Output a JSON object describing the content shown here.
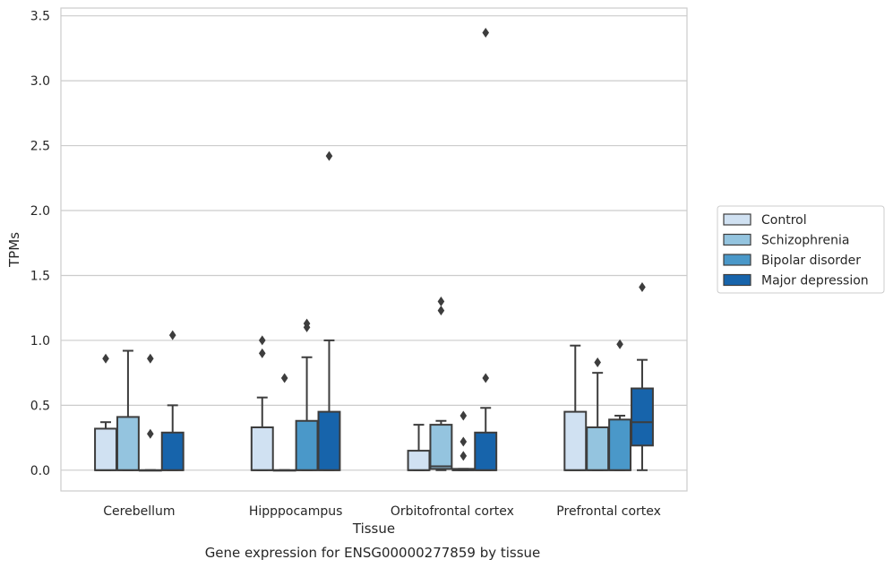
{
  "chart_data": {
    "type": "boxplot",
    "xlabel": "Tissue",
    "ylabel": "TPMs",
    "caption": "Gene expression for ENSG00000277859 by tissue",
    "ylim": [
      -0.16,
      3.56
    ],
    "yticks": [
      "0.0",
      "0.5",
      "1.0",
      "1.5",
      "2.0",
      "2.5",
      "3.0",
      "3.5"
    ],
    "grid": true,
    "legend_position": "right",
    "categories": [
      "Cerebellum",
      "Hipppocampus",
      "Orbitofrontal cortex",
      "Prefrontal cortex"
    ],
    "series": [
      {
        "name": "Control",
        "color": "#d0e1f2",
        "boxes": [
          {
            "whisker_low": 0.0,
            "q1": 0.0,
            "median": 0.0,
            "q3": 0.32,
            "whisker_high": 0.37,
            "outliers": [
              0.86
            ]
          },
          {
            "whisker_low": 0.0,
            "q1": 0.0,
            "median": 0.0,
            "q3": 0.33,
            "whisker_high": 0.56,
            "outliers": [
              0.9,
              1.0
            ]
          },
          {
            "whisker_low": 0.0,
            "q1": 0.0,
            "median": 0.0,
            "q3": 0.15,
            "whisker_high": 0.35,
            "outliers": []
          },
          {
            "whisker_low": 0.0,
            "q1": 0.0,
            "median": 0.0,
            "q3": 0.45,
            "whisker_high": 0.96,
            "outliers": []
          }
        ]
      },
      {
        "name": "Schizophrenia",
        "color": "#94c4df",
        "boxes": [
          {
            "whisker_low": 0.0,
            "q1": 0.0,
            "median": 0.0,
            "q3": 0.41,
            "whisker_high": 0.92,
            "outliers": []
          },
          {
            "whisker_low": 0.0,
            "q1": 0.0,
            "median": 0.0,
            "q3": 0.0,
            "whisker_high": 0.0,
            "outliers": [
              0.71
            ]
          },
          {
            "whisker_low": 0.0,
            "q1": 0.01,
            "median": 0.03,
            "q3": 0.35,
            "whisker_high": 0.38,
            "outliers": [
              1.23,
              1.3
            ]
          },
          {
            "whisker_low": 0.0,
            "q1": 0.0,
            "median": 0.0,
            "q3": 0.33,
            "whisker_high": 0.75,
            "outliers": [
              0.83
            ]
          }
        ]
      },
      {
        "name": "Bipolar disorder",
        "color": "#4a98c9",
        "boxes": [
          {
            "whisker_low": 0.0,
            "q1": 0.0,
            "median": 0.0,
            "q3": 0.0,
            "whisker_high": 0.0,
            "outliers": [
              0.28,
              0.86
            ]
          },
          {
            "whisker_low": 0.0,
            "q1": 0.0,
            "median": 0.0,
            "q3": 0.38,
            "whisker_high": 0.87,
            "outliers": [
              1.1,
              1.13
            ]
          },
          {
            "whisker_low": 0.0,
            "q1": 0.0,
            "median": 0.0,
            "q3": 0.01,
            "whisker_high": 0.01,
            "outliers": [
              0.11,
              0.22,
              0.42
            ]
          },
          {
            "whisker_low": 0.0,
            "q1": 0.0,
            "median": 0.0,
            "q3": 0.39,
            "whisker_high": 0.42,
            "outliers": [
              0.97
            ]
          }
        ]
      },
      {
        "name": "Major depression",
        "color": "#1764ab",
        "boxes": [
          {
            "whisker_low": 0.0,
            "q1": 0.0,
            "median": 0.0,
            "q3": 0.29,
            "whisker_high": 0.5,
            "outliers": [
              1.04
            ]
          },
          {
            "whisker_low": 0.0,
            "q1": 0.0,
            "median": 0.0,
            "q3": 0.45,
            "whisker_high": 1.0,
            "outliers": [
              2.42
            ]
          },
          {
            "whisker_low": 0.0,
            "q1": 0.0,
            "median": 0.0,
            "q3": 0.29,
            "whisker_high": 0.48,
            "outliers": [
              0.71,
              3.37
            ]
          },
          {
            "whisker_low": 0.0,
            "q1": 0.19,
            "median": 0.37,
            "q3": 0.63,
            "whisker_high": 0.85,
            "outliers": [
              1.41
            ]
          }
        ]
      }
    ]
  }
}
